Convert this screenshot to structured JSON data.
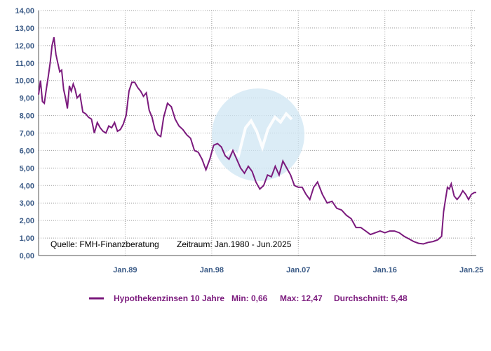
{
  "colors": {
    "series": "#7b1a7d",
    "axis_text": "#3a5a86",
    "grid": "#9a9a9a",
    "watermark_fill": "#cfe6f3",
    "watermark_stroke": "#ffffff"
  },
  "annotations": {
    "source": "Quelle: FMH-Finanzberatung",
    "period": "Zeitraum: Jan.1980 - Jun.2025"
  },
  "legend": {
    "series_label": "Hypothekenzinsen 10 Jahre",
    "min": "Min: 0,66",
    "max": "Max: 12,47",
    "avg": "Durchschnitt: 5,48"
  },
  "chart_data": {
    "type": "line",
    "title": "",
    "xlabel": "",
    "ylabel": "",
    "ylim": [
      0,
      14
    ],
    "yticks": [
      "0,00",
      "1,00",
      "2,00",
      "3,00",
      "4,00",
      "5,00",
      "6,00",
      "7,00",
      "8,00",
      "9,00",
      "10,00",
      "11,00",
      "12,00",
      "13,00",
      "14,00"
    ],
    "xlim": [
      1980.0,
      2025.5
    ],
    "xticks": [
      {
        "label": "Jan.89",
        "x": 1989.0
      },
      {
        "label": "Jan.98",
        "x": 1998.0
      },
      {
        "label": "Jan.07",
        "x": 2007.0
      },
      {
        "label": "Jan.16",
        "x": 2016.0
      },
      {
        "label": "Jan.25",
        "x": 2025.0
      }
    ],
    "grid": true,
    "legend_placement": "bottom",
    "series": [
      {
        "name": "Hypothekenzinsen 10 Jahre",
        "x": [
          1980.0,
          1980.2,
          1980.4,
          1980.6,
          1980.8,
          1981.0,
          1981.2,
          1981.4,
          1981.6,
          1981.8,
          1982.0,
          1982.2,
          1982.4,
          1982.6,
          1982.8,
          1983.0,
          1983.2,
          1983.4,
          1983.6,
          1983.8,
          1984.0,
          1984.3,
          1984.6,
          1984.9,
          1985.2,
          1985.5,
          1985.8,
          1986.1,
          1986.4,
          1986.7,
          1987.0,
          1987.3,
          1987.6,
          1987.9,
          1988.2,
          1988.5,
          1988.8,
          1989.1,
          1989.4,
          1989.7,
          1990.0,
          1990.3,
          1990.6,
          1990.9,
          1991.2,
          1991.5,
          1991.8,
          1992.1,
          1992.4,
          1992.7,
          1993.0,
          1993.4,
          1993.8,
          1994.2,
          1994.6,
          1995.0,
          1995.4,
          1995.8,
          1996.2,
          1996.6,
          1997.0,
          1997.4,
          1997.8,
          1998.2,
          1998.6,
          1999.0,
          1999.4,
          1999.8,
          2000.2,
          2000.6,
          2001.0,
          2001.4,
          2001.8,
          2002.2,
          2002.6,
          2003.0,
          2003.4,
          2003.8,
          2004.2,
          2004.6,
          2005.0,
          2005.4,
          2005.8,
          2006.2,
          2006.6,
          2007.0,
          2007.4,
          2007.8,
          2008.2,
          2008.6,
          2009.0,
          2009.5,
          2010.0,
          2010.5,
          2011.0,
          2011.5,
          2012.0,
          2012.5,
          2013.0,
          2013.5,
          2014.0,
          2014.5,
          2015.0,
          2015.5,
          2016.0,
          2016.5,
          2017.0,
          2017.5,
          2018.0,
          2018.5,
          2019.0,
          2019.5,
          2020.0,
          2020.5,
          2021.0,
          2021.5,
          2021.9,
          2022.1,
          2022.3,
          2022.5,
          2022.7,
          2022.9,
          2023.2,
          2023.5,
          2023.8,
          2024.1,
          2024.4,
          2024.7,
          2025.0,
          2025.3,
          2025.5
        ],
        "values": [
          9.2,
          10.0,
          8.8,
          8.7,
          9.5,
          10.2,
          11.0,
          12.0,
          12.47,
          11.5,
          11.0,
          10.5,
          10.6,
          9.5,
          9.0,
          8.4,
          9.7,
          9.4,
          9.8,
          9.5,
          9.0,
          9.2,
          8.2,
          8.1,
          7.9,
          7.8,
          7.0,
          7.6,
          7.3,
          7.1,
          7.0,
          7.4,
          7.3,
          7.6,
          7.1,
          7.2,
          7.5,
          8.0,
          9.4,
          9.9,
          9.9,
          9.6,
          9.4,
          9.1,
          9.3,
          8.3,
          7.9,
          7.2,
          6.9,
          6.8,
          7.9,
          8.7,
          8.5,
          7.8,
          7.4,
          7.2,
          6.9,
          6.7,
          6.0,
          5.9,
          5.5,
          4.9,
          5.5,
          6.3,
          6.4,
          6.2,
          5.7,
          5.5,
          6.0,
          5.5,
          5.0,
          4.7,
          5.1,
          4.8,
          4.2,
          3.8,
          4.0,
          4.6,
          4.5,
          5.1,
          4.6,
          5.4,
          5.0,
          4.6,
          4.0,
          3.9,
          3.9,
          3.5,
          3.2,
          3.9,
          4.2,
          3.5,
          3.0,
          3.1,
          2.7,
          2.6,
          2.3,
          2.1,
          1.6,
          1.6,
          1.4,
          1.2,
          1.3,
          1.4,
          1.3,
          1.4,
          1.4,
          1.3,
          1.1,
          0.95,
          0.8,
          0.7,
          0.66,
          0.75,
          0.8,
          0.9,
          1.1,
          2.5,
          3.2,
          3.9,
          3.8,
          4.1,
          3.4,
          3.2,
          3.4,
          3.7,
          3.5,
          3.2,
          3.5,
          3.6,
          3.6
        ]
      }
    ]
  }
}
